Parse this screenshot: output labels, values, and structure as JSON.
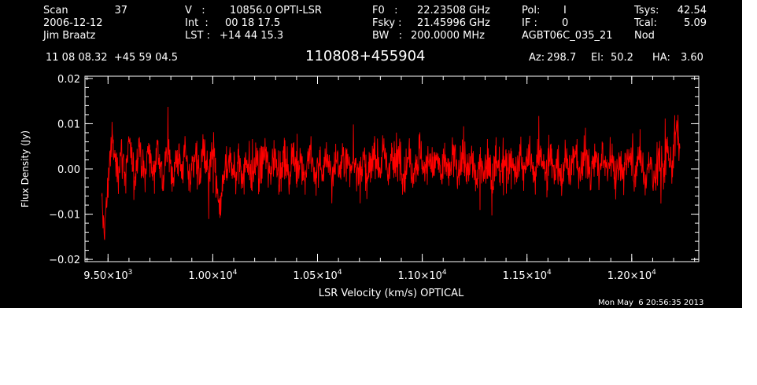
{
  "header": {
    "scan_label": "Scan",
    "scan_value": "37",
    "date": "2006-12-12",
    "observer": "Jim Braatz",
    "v_label": "V   :",
    "v_value": "10856.0 OPTI-LSR",
    "int_label": "Int  :",
    "int_value": "00 18 17.5",
    "lst_label": "LST :",
    "lst_value": "+14 44 15.3",
    "f0_label": "F0   :",
    "f0_value": "22.23508 GHz",
    "fsky_label": "Fsky :",
    "fsky_value": "21.45996 GHz",
    "bw_label": "BW   :",
    "bw_value": "200.0000 MHz",
    "pol_label": "Pol:",
    "pol_value": "I",
    "if_label": "IF :",
    "if_value": "0",
    "project": "AGBT06C_035_21",
    "tsys_label": "Tsys:",
    "tsys_value": "42.54",
    "tcal_label": "Tcal:",
    "tcal_value": "5.09",
    "mode": "Nod",
    "coords": "11 08 08.32  +45 59 04.5",
    "source": "110808+455904",
    "az_label": "Az:",
    "az_value": "298.7",
    "el_label": "El:",
    "el_value": "50.2",
    "ha_label": "HA:",
    "ha_value": "3.60"
  },
  "timestamp": "Mon May  6 20:56:35 2013",
  "colors": {
    "background": "#000000",
    "axes": "#ffffff",
    "trace": "#ff0000"
  },
  "chart_data": {
    "type": "line",
    "title": "110808+455904",
    "xlabel": "LSR Velocity (km/s) OPTICAL",
    "ylabel": "Flux Density (Jy)",
    "xlim": [
      9390,
      12320
    ],
    "ylim": [
      -0.0205,
      0.0205
    ],
    "x_ticks": [
      {
        "value": 9500,
        "mantissa": "9.50",
        "exp": "3"
      },
      {
        "value": 10000,
        "mantissa": "1.00",
        "exp": "4"
      },
      {
        "value": 10500,
        "mantissa": "1.05",
        "exp": "4"
      },
      {
        "value": 11000,
        "mantissa": "1.10",
        "exp": "4"
      },
      {
        "value": 11500,
        "mantissa": "1.15",
        "exp": "4"
      },
      {
        "value": 12000,
        "mantissa": "1.20",
        "exp": "4"
      }
    ],
    "y_ticks": [
      {
        "value": 0.02,
        "label": "0.02"
      },
      {
        "value": 0.01,
        "label": "0.01"
      },
      {
        "value": 0.0,
        "label": "0.00"
      },
      {
        "value": -0.01,
        "label": "−0.01"
      },
      {
        "value": -0.02,
        "label": "−0.02"
      }
    ],
    "series": [
      {
        "x_start": 9470,
        "x_end": 12230,
        "values": [
          -0.009,
          -0.013,
          -0.007,
          0.003,
          0.006,
          0.002,
          -0.001,
          0.004,
          0.002,
          -0.002,
          0.005,
          0.003,
          -0.003,
          0.002,
          0.006,
          0.001,
          -0.002,
          0.003,
          0.004,
          -0.001,
          0.002,
          0.005,
          0.001,
          -0.003,
          0.002,
          0.004,
          0.0,
          -0.002,
          0.003,
          0.002,
          -0.001,
          0.004,
          0.001,
          -0.003,
          0.002,
          0.003,
          -0.001,
          0.0,
          0.004,
          0.001,
          -0.002,
          0.003,
          0.002,
          -0.004,
          -0.01,
          -0.006,
          0.001,
          -0.002,
          0.002,
          0.001,
          -0.003,
          0.002,
          0.0,
          -0.002,
          0.003,
          0.001,
          -0.003,
          0.001,
          0.002,
          -0.001,
          0.002,
          0.004,
          0.001,
          -0.002,
          0.002,
          0.003,
          0.0,
          -0.001,
          0.003,
          0.001,
          -0.003,
          0.002,
          0.002,
          0.0,
          0.003,
          0.001,
          -0.002,
          0.002,
          0.004,
          0.0,
          -0.002,
          0.002,
          0.001,
          -0.002,
          0.003,
          0.002,
          -0.003,
          0.001,
          0.002,
          -0.001,
          0.002,
          0.003,
          0.001,
          -0.001,
          0.003,
          0.002,
          -0.002,
          0.001,
          0.002,
          -0.003,
          -0.001,
          0.003,
          0.004,
          0.002,
          0.0,
          0.003,
          0.002,
          -0.001,
          0.003,
          0.001,
          0.0,
          0.004,
          0.002,
          -0.002,
          0.002,
          0.003,
          -0.001,
          0.001,
          0.002,
          0.004,
          0.001,
          -0.001,
          0.003,
          0.002,
          0.0,
          0.002,
          0.001,
          -0.003,
          0.002,
          0.001,
          -0.002,
          0.003,
          0.002,
          -0.002,
          0.001,
          0.003,
          0.001,
          -0.002,
          0.002,
          0.001,
          -0.003,
          0.0,
          0.002,
          -0.001,
          0.002,
          0.001,
          -0.003,
          0.002,
          0.001,
          -0.001,
          0.002,
          0.003,
          -0.001,
          0.002,
          0.001,
          -0.002,
          0.003,
          0.002,
          -0.002,
          0.001,
          0.003,
          0.0,
          -0.002,
          0.002,
          0.004,
          0.001,
          -0.001,
          0.003,
          0.002,
          -0.001,
          0.002,
          0.001,
          -0.002,
          0.003,
          0.002,
          -0.001,
          0.002,
          0.003,
          0.001,
          -0.002,
          0.002,
          0.004,
          0.001,
          -0.002,
          0.003,
          0.002,
          -0.001,
          0.002,
          0.001,
          0.0,
          0.003,
          0.002,
          -0.002,
          0.001,
          0.002,
          -0.001,
          0.002,
          0.004,
          0.001,
          -0.003,
          0.002,
          0.003,
          0.0,
          -0.003,
          0.001,
          0.002,
          -0.004,
          0.0,
          0.003,
          0.001,
          -0.001,
          0.004,
          0.002,
          0.0,
          0.006,
          0.009,
          0.004
        ]
      }
    ]
  }
}
